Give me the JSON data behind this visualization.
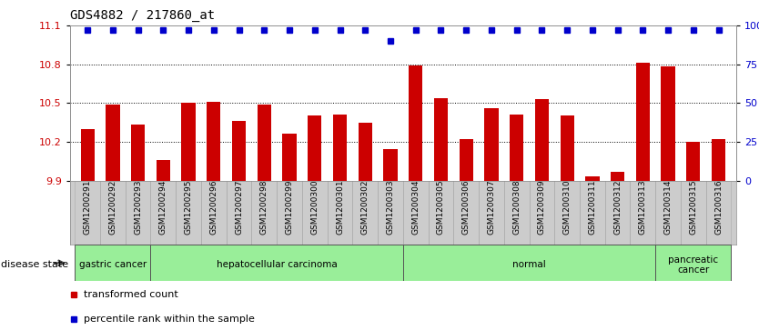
{
  "title": "GDS4882 / 217860_at",
  "samples": [
    "GSM1200291",
    "GSM1200292",
    "GSM1200293",
    "GSM1200294",
    "GSM1200295",
    "GSM1200296",
    "GSM1200297",
    "GSM1200298",
    "GSM1200299",
    "GSM1200300",
    "GSM1200301",
    "GSM1200302",
    "GSM1200303",
    "GSM1200304",
    "GSM1200305",
    "GSM1200306",
    "GSM1200307",
    "GSM1200308",
    "GSM1200309",
    "GSM1200310",
    "GSM1200311",
    "GSM1200312",
    "GSM1200313",
    "GSM1200314",
    "GSM1200315",
    "GSM1200316"
  ],
  "bar_values": [
    10.3,
    10.49,
    10.33,
    10.06,
    10.5,
    10.51,
    10.36,
    10.49,
    10.26,
    10.4,
    10.41,
    10.35,
    10.14,
    10.79,
    10.54,
    10.22,
    10.46,
    10.41,
    10.53,
    10.4,
    9.93,
    9.97,
    10.81,
    10.78,
    10.2,
    10.22
  ],
  "percentile_values": [
    97,
    97,
    97,
    97,
    97,
    97,
    97,
    97,
    97,
    97,
    97,
    97,
    90,
    97,
    97,
    97,
    97,
    97,
    97,
    97,
    97,
    97,
    97,
    97,
    97,
    97
  ],
  "disease_groups": [
    {
      "label": "gastric cancer",
      "start": 0,
      "end": 3
    },
    {
      "label": "hepatocellular carcinoma",
      "start": 3,
      "end": 13
    },
    {
      "label": "normal",
      "start": 13,
      "end": 23
    },
    {
      "label": "pancreatic\ncancer",
      "start": 23,
      "end": 26
    }
  ],
  "ylim_left": [
    9.9,
    11.1
  ],
  "ylim_right": [
    0,
    100
  ],
  "yticks_left": [
    9.9,
    10.2,
    10.5,
    10.8,
    11.1
  ],
  "yticks_right": [
    0,
    25,
    50,
    75,
    100
  ],
  "ytick_labels_right": [
    "0",
    "25",
    "50",
    "75",
    "100%"
  ],
  "bar_color": "#cc0000",
  "percentile_color": "#0000cc",
  "bg_color": "#ffffff",
  "grid_color": "#000000",
  "tick_label_color_left": "#cc0000",
  "tick_label_color_right": "#0000cc",
  "group_color_light": "#99ee99",
  "group_color_dark": "#55cc55",
  "legend_bar_label": "transformed count",
  "legend_pct_label": "percentile rank within the sample",
  "disease_state_label": "disease state"
}
